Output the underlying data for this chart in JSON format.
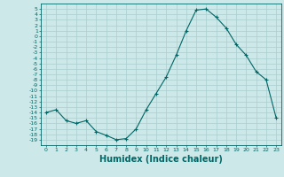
{
  "x": [
    0,
    1,
    2,
    3,
    4,
    5,
    6,
    7,
    8,
    9,
    10,
    11,
    12,
    13,
    14,
    15,
    16,
    17,
    18,
    19,
    20,
    21,
    22,
    23
  ],
  "y": [
    -14.0,
    -13.5,
    -15.5,
    -16.0,
    -15.5,
    -17.5,
    -18.2,
    -19.0,
    -18.8,
    -17.0,
    -13.5,
    -10.5,
    -7.5,
    -3.5,
    1.0,
    4.8,
    5.0,
    3.5,
    1.5,
    -1.5,
    -3.5,
    -6.5,
    -8.0,
    -15.0
  ],
  "line_color": "#006666",
  "marker": "+",
  "marker_size": 3,
  "xlabel": "Humidex (Indice chaleur)",
  "xlabel_fontsize": 7,
  "bg_color": "#cce8e8",
  "grid_color": "#aacece",
  "tick_color": "#006666",
  "xlim": [
    -0.5,
    23.5
  ],
  "ylim": [
    -20,
    6
  ],
  "yticks": [
    5,
    4,
    3,
    2,
    1,
    0,
    -1,
    -2,
    -3,
    -4,
    -5,
    -6,
    -7,
    -8,
    -9,
    -10,
    -11,
    -12,
    -13,
    -14,
    -15,
    -16,
    -17,
    -18,
    -19
  ],
  "xticks": [
    0,
    1,
    2,
    3,
    4,
    5,
    6,
    7,
    8,
    9,
    10,
    11,
    12,
    13,
    14,
    15,
    16,
    17,
    18,
    19,
    20,
    21,
    22,
    23
  ]
}
